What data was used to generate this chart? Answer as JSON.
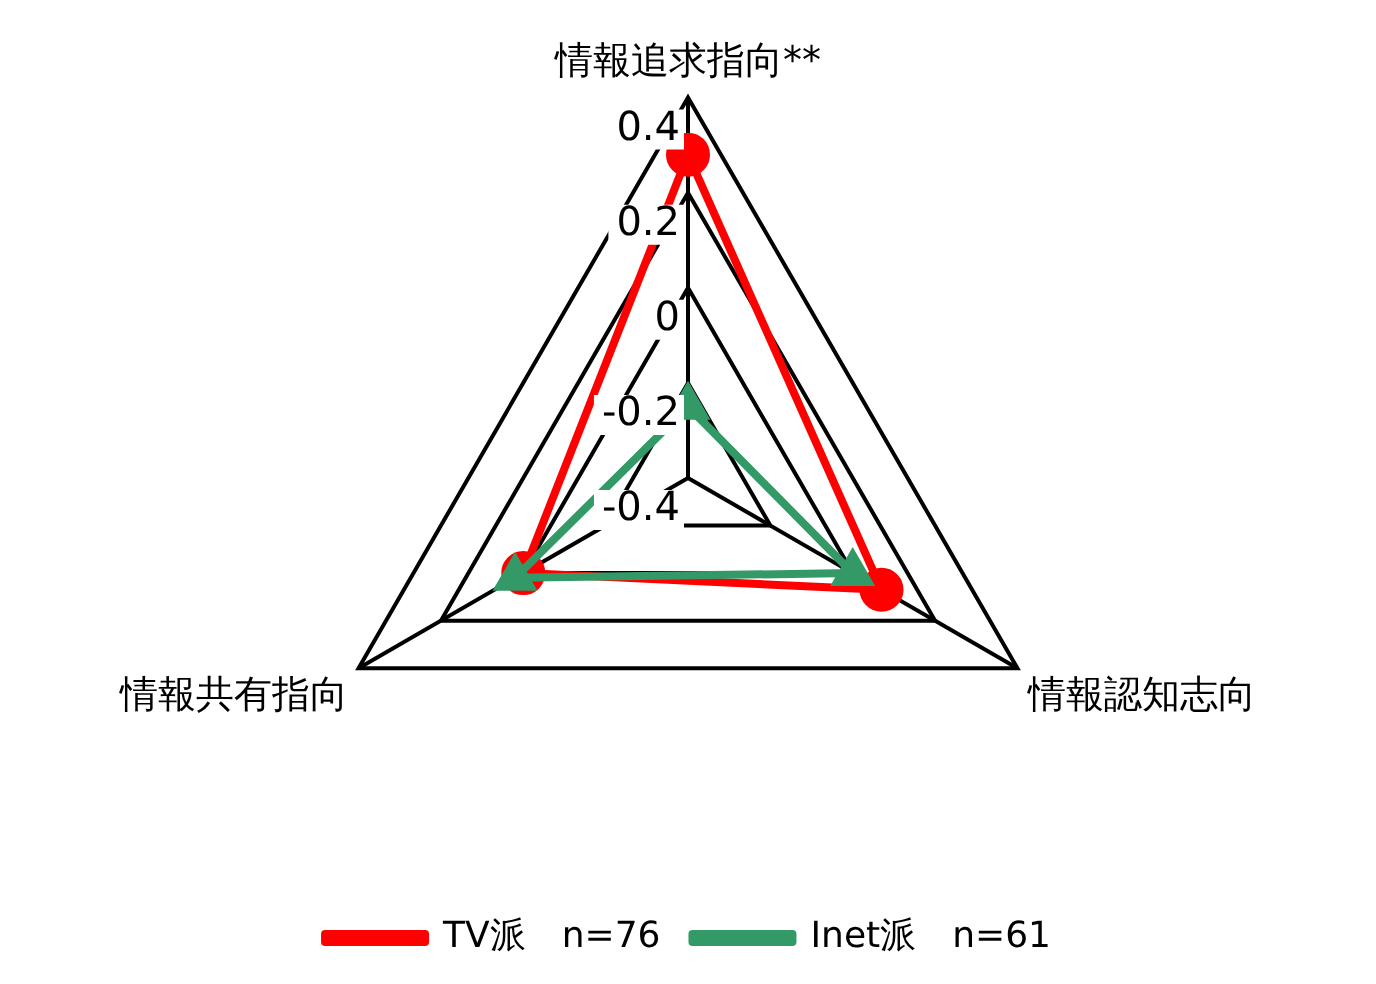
{
  "chart_data": {
    "type": "radar",
    "categories": [
      "情報追求指向**",
      "情報認知志向",
      "情報共有指向"
    ],
    "series": [
      {
        "name": "TV派　n=76",
        "color": "#ff0000",
        "marker": "circle",
        "values": [
          0.28,
          0.07,
          0.0
        ]
      },
      {
        "name": "Inet派　n=61",
        "color": "#339966",
        "marker": "triangle",
        "values": [
          -0.25,
          0.0,
          0.02
        ]
      }
    ],
    "ylim": [
      -0.4,
      0.4
    ],
    "yticks": [
      -0.4,
      -0.2,
      0,
      0.2,
      0.4
    ],
    "legend": "bottom",
    "grid": true
  }
}
